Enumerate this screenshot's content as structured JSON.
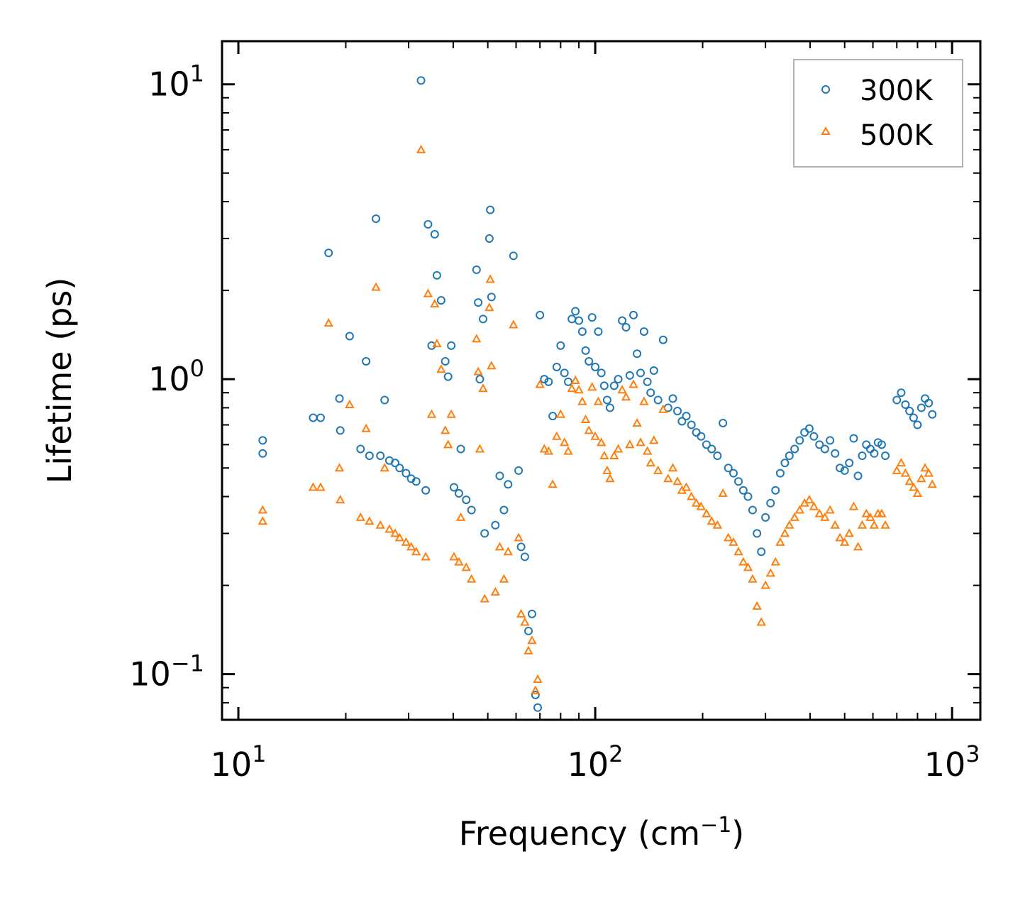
{
  "chart_data": {
    "type": "scatter",
    "title": "",
    "xscale": "log",
    "yscale": "log",
    "xlim": [
      9,
      1200
    ],
    "ylim": [
      0.07,
      14
    ],
    "xticks": [
      {
        "base": "10",
        "exp": "1",
        "value": 10
      },
      {
        "base": "10",
        "exp": "2",
        "value": 100
      },
      {
        "base": "10",
        "exp": "3",
        "value": 1000
      }
    ],
    "yticks": [
      {
        "base": "10",
        "exp": "−1",
        "value": 0.1
      },
      {
        "base": "10",
        "exp": "0",
        "value": 1
      },
      {
        "base": "10",
        "exp": "1",
        "value": 10
      }
    ],
    "xlabel": {
      "text": "Frequency (cm",
      "sup": "−1",
      "suffix": ")"
    },
    "ylabel": "Lifetime (ps)",
    "legend_position": "top-right",
    "series": [
      {
        "name": "300K",
        "marker": "circle",
        "color": "#1f77b4",
        "points": [
          [
            11.7,
            0.62
          ],
          [
            11.7,
            0.56
          ],
          [
            16.2,
            0.74
          ],
          [
            17.0,
            0.74
          ],
          [
            17.9,
            2.68
          ],
          [
            19.2,
            0.86
          ],
          [
            19.3,
            0.67
          ],
          [
            20.5,
            1.4
          ],
          [
            22.0,
            0.58
          ],
          [
            22.8,
            1.15
          ],
          [
            23.3,
            0.55
          ],
          [
            24.3,
            3.5
          ],
          [
            25.0,
            0.55
          ],
          [
            25.7,
            0.85
          ],
          [
            26.5,
            0.53
          ],
          [
            27.5,
            0.52
          ],
          [
            28.3,
            0.5
          ],
          [
            29.5,
            0.48
          ],
          [
            30.5,
            0.46
          ],
          [
            31.5,
            0.45
          ],
          [
            32.5,
            10.3
          ],
          [
            33.5,
            0.42
          ],
          [
            34.0,
            3.35
          ],
          [
            34.8,
            1.3
          ],
          [
            35.5,
            3.1
          ],
          [
            36.0,
            2.25
          ],
          [
            37.0,
            1.85
          ],
          [
            38.0,
            1.15
          ],
          [
            38.7,
            1.02
          ],
          [
            39.5,
            1.3
          ],
          [
            40.2,
            0.43
          ],
          [
            41.5,
            0.41
          ],
          [
            42.0,
            0.58
          ],
          [
            43.5,
            0.39
          ],
          [
            45.0,
            0.36
          ],
          [
            46.5,
            2.35
          ],
          [
            47.0,
            1.82
          ],
          [
            47.5,
            1.0
          ],
          [
            48.5,
            1.6
          ],
          [
            49.0,
            0.3
          ],
          [
            50.5,
            3.0
          ],
          [
            50.8,
            3.75
          ],
          [
            51.2,
            1.9
          ],
          [
            52.5,
            0.32
          ],
          [
            54.0,
            0.47
          ],
          [
            55.5,
            0.36
          ],
          [
            57.0,
            0.44
          ],
          [
            59.0,
            2.62
          ],
          [
            61.0,
            0.49
          ],
          [
            62.0,
            0.27
          ],
          [
            63.5,
            0.25
          ],
          [
            65.0,
            0.14
          ],
          [
            66.5,
            0.16
          ],
          [
            68.0,
            0.085
          ],
          [
            69.0,
            0.077
          ],
          [
            70.0,
            1.65
          ],
          [
            72.0,
            1.0
          ],
          [
            74.0,
            0.98
          ],
          [
            76.0,
            0.75
          ],
          [
            78.0,
            1.1
          ],
          [
            80.0,
            1.3
          ],
          [
            82.0,
            1.05
          ],
          [
            84.0,
            0.98
          ],
          [
            86.0,
            1.6
          ],
          [
            88.0,
            1.7
          ],
          [
            90.0,
            1.58
          ],
          [
            92.0,
            1.45
          ],
          [
            94.0,
            1.25
          ],
          [
            96.0,
            1.15
          ],
          [
            98.0,
            1.62
          ],
          [
            100.0,
            1.1
          ],
          [
            102.0,
            1.45
          ],
          [
            104.0,
            1.05
          ],
          [
            106.0,
            0.95
          ],
          [
            108.0,
            0.85
          ],
          [
            110.0,
            0.8
          ],
          [
            113.0,
            0.95
          ],
          [
            116.0,
            1.0
          ],
          [
            119.0,
            1.58
          ],
          [
            122.0,
            1.5
          ],
          [
            125.0,
            1.03
          ],
          [
            128.0,
            1.65
          ],
          [
            131.0,
            1.22
          ],
          [
            134.0,
            1.05
          ],
          [
            137.0,
            1.45
          ],
          [
            140.0,
            0.98
          ],
          [
            143.0,
            0.9
          ],
          [
            146.0,
            1.07
          ],
          [
            150.0,
            0.85
          ],
          [
            155.0,
            1.36
          ],
          [
            160.0,
            0.8
          ],
          [
            165.0,
            0.86
          ],
          [
            170.0,
            0.78
          ],
          [
            175.0,
            0.72
          ],
          [
            180.0,
            0.75
          ],
          [
            186.0,
            0.7
          ],
          [
            192.0,
            0.66
          ],
          [
            198.0,
            0.64
          ],
          [
            205.0,
            0.6
          ],
          [
            212.0,
            0.58
          ],
          [
            220.0,
            0.55
          ],
          [
            228.0,
            0.71
          ],
          [
            236.0,
            0.5
          ],
          [
            244.0,
            0.48
          ],
          [
            252.0,
            0.45
          ],
          [
            260.0,
            0.42
          ],
          [
            268.0,
            0.4
          ],
          [
            276.0,
            0.36
          ],
          [
            284.0,
            0.3
          ],
          [
            292.0,
            0.26
          ],
          [
            300.0,
            0.34
          ],
          [
            310.0,
            0.38
          ],
          [
            320.0,
            0.42
          ],
          [
            330.0,
            0.48
          ],
          [
            340.0,
            0.52
          ],
          [
            350.0,
            0.55
          ],
          [
            362.0,
            0.58
          ],
          [
            374.0,
            0.62
          ],
          [
            386.0,
            0.66
          ],
          [
            398.0,
            0.68
          ],
          [
            410.0,
            0.64
          ],
          [
            425.0,
            0.6
          ],
          [
            440.0,
            0.58
          ],
          [
            455.0,
            0.62
          ],
          [
            470.0,
            0.56
          ],
          [
            485.0,
            0.5
          ],
          [
            500.0,
            0.49
          ],
          [
            515.0,
            0.52
          ],
          [
            530.0,
            0.63
          ],
          [
            545.0,
            0.47
          ],
          [
            560.0,
            0.55
          ],
          [
            575.0,
            0.6
          ],
          [
            590.0,
            0.58
          ],
          [
            605.0,
            0.56
          ],
          [
            620.0,
            0.61
          ],
          [
            635.0,
            0.6
          ],
          [
            650.0,
            0.55
          ],
          [
            700.0,
            0.85
          ],
          [
            720.0,
            0.9
          ],
          [
            740.0,
            0.82
          ],
          [
            760.0,
            0.78
          ],
          [
            780.0,
            0.74
          ],
          [
            800.0,
            0.7
          ],
          [
            820.0,
            0.8
          ],
          [
            840.0,
            0.86
          ],
          [
            860.0,
            0.83
          ],
          [
            880.0,
            0.76
          ]
        ]
      },
      {
        "name": "500K",
        "marker": "triangle",
        "color": "#ff7f0e",
        "points": [
          [
            11.7,
            0.36
          ],
          [
            11.7,
            0.33
          ],
          [
            16.2,
            0.43
          ],
          [
            17.0,
            0.43
          ],
          [
            17.9,
            1.55
          ],
          [
            19.2,
            0.5
          ],
          [
            19.3,
            0.39
          ],
          [
            20.5,
            0.82
          ],
          [
            22.0,
            0.34
          ],
          [
            22.8,
            0.68
          ],
          [
            23.3,
            0.33
          ],
          [
            24.3,
            2.05
          ],
          [
            25.0,
            0.32
          ],
          [
            25.7,
            0.5
          ],
          [
            26.5,
            0.31
          ],
          [
            27.5,
            0.3
          ],
          [
            28.3,
            0.29
          ],
          [
            29.5,
            0.28
          ],
          [
            30.5,
            0.27
          ],
          [
            31.5,
            0.26
          ],
          [
            32.5,
            6.0
          ],
          [
            33.5,
            0.25
          ],
          [
            34.0,
            1.95
          ],
          [
            34.8,
            0.76
          ],
          [
            35.5,
            1.8
          ],
          [
            36.0,
            1.32
          ],
          [
            37.0,
            1.08
          ],
          [
            38.0,
            0.67
          ],
          [
            38.7,
            0.6
          ],
          [
            39.5,
            0.76
          ],
          [
            40.2,
            0.25
          ],
          [
            41.5,
            0.24
          ],
          [
            42.0,
            0.34
          ],
          [
            43.5,
            0.23
          ],
          [
            45.0,
            0.21
          ],
          [
            46.5,
            1.37
          ],
          [
            47.0,
            1.06
          ],
          [
            47.5,
            0.58
          ],
          [
            48.5,
            0.93
          ],
          [
            49.0,
            0.18
          ],
          [
            50.5,
            1.75
          ],
          [
            50.8,
            2.18
          ],
          [
            51.2,
            1.11
          ],
          [
            52.5,
            0.19
          ],
          [
            54.0,
            0.27
          ],
          [
            55.5,
            0.21
          ],
          [
            57.0,
            0.26
          ],
          [
            59.0,
            1.53
          ],
          [
            61.0,
            0.29
          ],
          [
            62.0,
            0.16
          ],
          [
            63.5,
            0.15
          ],
          [
            65.0,
            0.12
          ],
          [
            66.5,
            0.13
          ],
          [
            68.0,
            0.088
          ],
          [
            69.0,
            0.096
          ],
          [
            70.0,
            0.96
          ],
          [
            72.0,
            0.58
          ],
          [
            74.0,
            0.57
          ],
          [
            76.0,
            0.44
          ],
          [
            78.0,
            0.64
          ],
          [
            80.0,
            0.76
          ],
          [
            82.0,
            0.61
          ],
          [
            84.0,
            0.57
          ],
          [
            86.0,
            0.93
          ],
          [
            88.0,
            0.99
          ],
          [
            90.0,
            0.92
          ],
          [
            92.0,
            0.84
          ],
          [
            94.0,
            0.73
          ],
          [
            96.0,
            0.67
          ],
          [
            98.0,
            0.94
          ],
          [
            100.0,
            0.64
          ],
          [
            102.0,
            0.84
          ],
          [
            104.0,
            0.61
          ],
          [
            106.0,
            0.55
          ],
          [
            108.0,
            0.49
          ],
          [
            110.0,
            0.46
          ],
          [
            113.0,
            0.55
          ],
          [
            116.0,
            0.58
          ],
          [
            119.0,
            0.92
          ],
          [
            122.0,
            0.87
          ],
          [
            125.0,
            0.6
          ],
          [
            128.0,
            0.96
          ],
          [
            131.0,
            0.71
          ],
          [
            134.0,
            0.61
          ],
          [
            137.0,
            0.84
          ],
          [
            140.0,
            0.57
          ],
          [
            143.0,
            0.52
          ],
          [
            146.0,
            0.62
          ],
          [
            150.0,
            0.49
          ],
          [
            155.0,
            0.79
          ],
          [
            160.0,
            0.46
          ],
          [
            165.0,
            0.5
          ],
          [
            170.0,
            0.45
          ],
          [
            175.0,
            0.42
          ],
          [
            180.0,
            0.43
          ],
          [
            186.0,
            0.4
          ],
          [
            192.0,
            0.38
          ],
          [
            198.0,
            0.37
          ],
          [
            205.0,
            0.35
          ],
          [
            212.0,
            0.33
          ],
          [
            220.0,
            0.32
          ],
          [
            228.0,
            0.41
          ],
          [
            236.0,
            0.29
          ],
          [
            244.0,
            0.28
          ],
          [
            252.0,
            0.26
          ],
          [
            260.0,
            0.24
          ],
          [
            268.0,
            0.23
          ],
          [
            276.0,
            0.21
          ],
          [
            284.0,
            0.17
          ],
          [
            292.0,
            0.15
          ],
          [
            300.0,
            0.2
          ],
          [
            310.0,
            0.22
          ],
          [
            320.0,
            0.24
          ],
          [
            330.0,
            0.28
          ],
          [
            340.0,
            0.3
          ],
          [
            350.0,
            0.32
          ],
          [
            362.0,
            0.34
          ],
          [
            374.0,
            0.36
          ],
          [
            386.0,
            0.38
          ],
          [
            398.0,
            0.39
          ],
          [
            410.0,
            0.37
          ],
          [
            425.0,
            0.35
          ],
          [
            440.0,
            0.34
          ],
          [
            455.0,
            0.36
          ],
          [
            470.0,
            0.32
          ],
          [
            485.0,
            0.29
          ],
          [
            500.0,
            0.28
          ],
          [
            515.0,
            0.3
          ],
          [
            530.0,
            0.37
          ],
          [
            545.0,
            0.27
          ],
          [
            560.0,
            0.32
          ],
          [
            575.0,
            0.35
          ],
          [
            590.0,
            0.34
          ],
          [
            605.0,
            0.32
          ],
          [
            620.0,
            0.35
          ],
          [
            635.0,
            0.35
          ],
          [
            650.0,
            0.32
          ],
          [
            700.0,
            0.49
          ],
          [
            720.0,
            0.52
          ],
          [
            740.0,
            0.48
          ],
          [
            760.0,
            0.45
          ],
          [
            780.0,
            0.43
          ],
          [
            800.0,
            0.41
          ],
          [
            820.0,
            0.46
          ],
          [
            840.0,
            0.5
          ],
          [
            860.0,
            0.48
          ],
          [
            880.0,
            0.44
          ]
        ]
      }
    ]
  }
}
